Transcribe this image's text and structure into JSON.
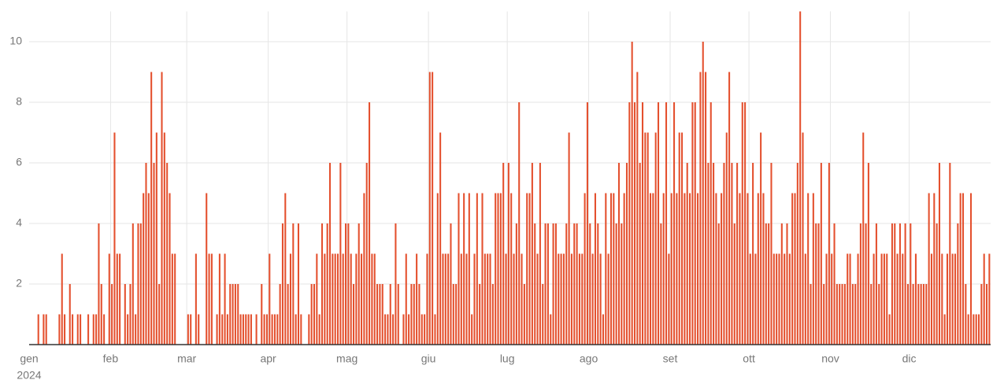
{
  "chart_data": {
    "type": "bar",
    "year": "2024",
    "categories": [
      "gen",
      null,
      null,
      null,
      null,
      null,
      null,
      null,
      null,
      null,
      null,
      null,
      null,
      null,
      null,
      null,
      null,
      null,
      null,
      null,
      null,
      null,
      null,
      null,
      null,
      null,
      null,
      null,
      null,
      null,
      null,
      "feb",
      null,
      null,
      null,
      null,
      null,
      null,
      null,
      null,
      null,
      null,
      null,
      null,
      null,
      null,
      null,
      null,
      null,
      null,
      null,
      null,
      null,
      null,
      null,
      null,
      null,
      null,
      null,
      null,
      "mar",
      null,
      null,
      null,
      null,
      null,
      null,
      null,
      null,
      null,
      null,
      null,
      null,
      null,
      null,
      null,
      null,
      null,
      null,
      null,
      null,
      null,
      null,
      null,
      null,
      null,
      null,
      null,
      null,
      null,
      null,
      "apr",
      null,
      null,
      null,
      null,
      null,
      null,
      null,
      null,
      null,
      null,
      null,
      null,
      null,
      null,
      null,
      null,
      null,
      null,
      null,
      null,
      null,
      null,
      null,
      null,
      null,
      null,
      null,
      null,
      null,
      "mag",
      null,
      null,
      null,
      null,
      null,
      null,
      null,
      null,
      null,
      null,
      null,
      null,
      null,
      null,
      null,
      null,
      null,
      null,
      null,
      null,
      null,
      null,
      null,
      null,
      null,
      null,
      null,
      null,
      null,
      null,
      "giu",
      null,
      null,
      null,
      null,
      null,
      null,
      null,
      null,
      null,
      null,
      null,
      null,
      null,
      null,
      null,
      null,
      null,
      null,
      null,
      null,
      null,
      null,
      null,
      null,
      null,
      null,
      null,
      null,
      null,
      "lug",
      null,
      null,
      null,
      null,
      null,
      null,
      null,
      null,
      null,
      null,
      null,
      null,
      null,
      null,
      null,
      null,
      null,
      null,
      null,
      null,
      null,
      null,
      null,
      null,
      null,
      null,
      null,
      null,
      null,
      null,
      "ago",
      null,
      null,
      null,
      null,
      null,
      null,
      null,
      null,
      null,
      null,
      null,
      null,
      null,
      null,
      null,
      null,
      null,
      null,
      null,
      null,
      null,
      null,
      null,
      null,
      null,
      null,
      null,
      null,
      null,
      null,
      "set",
      null,
      null,
      null,
      null,
      null,
      null,
      null,
      null,
      null,
      null,
      null,
      null,
      null,
      null,
      null,
      null,
      null,
      null,
      null,
      null,
      null,
      null,
      null,
      null,
      null,
      null,
      null,
      null,
      null,
      "ott",
      null,
      null,
      null,
      null,
      null,
      null,
      null,
      null,
      null,
      null,
      null,
      null,
      null,
      null,
      null,
      null,
      null,
      null,
      null,
      null,
      null,
      null,
      null,
      null,
      null,
      null,
      null,
      null,
      null,
      null,
      "nov",
      null,
      null,
      null,
      null,
      null,
      null,
      null,
      null,
      null,
      null,
      null,
      null,
      null,
      null,
      null,
      null,
      null,
      null,
      null,
      null,
      null,
      null,
      null,
      null,
      null,
      null,
      null,
      null,
      null,
      "dic",
      null,
      null,
      null,
      null,
      null,
      null,
      null,
      null,
      null,
      null,
      null,
      null,
      null,
      null,
      null,
      null,
      null,
      null,
      null,
      null,
      null,
      null,
      null,
      null,
      null,
      null,
      null,
      null,
      null,
      null
    ],
    "values": [
      0,
      0,
      0,
      1,
      0,
      1,
      1,
      0,
      0,
      0,
      0,
      1,
      3,
      1,
      0,
      2,
      1,
      0,
      1,
      1,
      0,
      0,
      1,
      0,
      1,
      1,
      4,
      2,
      1,
      0,
      3,
      2,
      7,
      3,
      3,
      0,
      2,
      1,
      2,
      4,
      1,
      4,
      4,
      5,
      6,
      5,
      9,
      6,
      7,
      2,
      9,
      7,
      6,
      5,
      3,
      3,
      0,
      0,
      0,
      0,
      1,
      1,
      0,
      3,
      1,
      0,
      0,
      5,
      3,
      3,
      0,
      1,
      3,
      1,
      3,
      1,
      2,
      2,
      2,
      2,
      1,
      1,
      1,
      1,
      1,
      0,
      1,
      0,
      2,
      1,
      1,
      3,
      1,
      1,
      1,
      2,
      4,
      5,
      2,
      3,
      4,
      1,
      4,
      1,
      0,
      0,
      1,
      2,
      2,
      3,
      1,
      4,
      3,
      4,
      6,
      3,
      3,
      3,
      6,
      3,
      4,
      4,
      3,
      2,
      3,
      4,
      3,
      5,
      6,
      8,
      3,
      3,
      2,
      2,
      2,
      1,
      1,
      2,
      1,
      4,
      2,
      0,
      1,
      3,
      1,
      2,
      2,
      3,
      2,
      1,
      1,
      3,
      9,
      9,
      1,
      5,
      7,
      3,
      3,
      3,
      4,
      2,
      2,
      5,
      3,
      5,
      3,
      5,
      1,
      3,
      5,
      2,
      5,
      3,
      3,
      3,
      2,
      5,
      5,
      5,
      6,
      3,
      6,
      5,
      3,
      4,
      8,
      3,
      2,
      5,
      5,
      6,
      4,
      3,
      6,
      2,
      4,
      4,
      1,
      4,
      4,
      3,
      3,
      3,
      4,
      7,
      3,
      4,
      4,
      3,
      3,
      5,
      8,
      4,
      3,
      5,
      4,
      3,
      1,
      5,
      3,
      5,
      5,
      4,
      6,
      4,
      5,
      6,
      8,
      10,
      8,
      9,
      6,
      8,
      7,
      7,
      5,
      5,
      7,
      8,
      4,
      5,
      8,
      3,
      5,
      8,
      5,
      7,
      7,
      5,
      6,
      5,
      8,
      8,
      5,
      9,
      10,
      9,
      6,
      8,
      6,
      5,
      4,
      5,
      6,
      7,
      9,
      6,
      4,
      6,
      5,
      8,
      8,
      5,
      3,
      6,
      3,
      5,
      7,
      5,
      4,
      4,
      6,
      3,
      3,
      3,
      4,
      3,
      4,
      3,
      5,
      5,
      6,
      11,
      7,
      3,
      5,
      2,
      5,
      4,
      4,
      6,
      2,
      3,
      6,
      3,
      4,
      2,
      2,
      2,
      2,
      3,
      3,
      2,
      2,
      3,
      4,
      7,
      4,
      6,
      2,
      3,
      4,
      2,
      3,
      3,
      3,
      1,
      4,
      4,
      3,
      4,
      3,
      4,
      2,
      4,
      2,
      3,
      2,
      2,
      2,
      2,
      5,
      3,
      5,
      4,
      6,
      3,
      1,
      3,
      6,
      3,
      3,
      4,
      5,
      5,
      2,
      1,
      5,
      1,
      1,
      1,
      2,
      3,
      2,
      3
    ],
    "color": "#e4502e",
    "ylim": [
      0,
      11
    ],
    "yticks": [
      2,
      4,
      6,
      8,
      10
    ],
    "grid": true
  }
}
